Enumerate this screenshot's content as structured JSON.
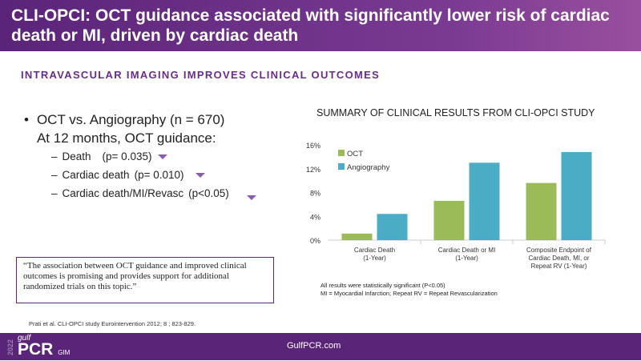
{
  "header": {
    "title": "CLI-OPCI: OCT guidance associated with significantly lower risk of cardiac death or MI, driven by cardiac death"
  },
  "subtitle": "INTRAVASCULAR IMAGING IMPROVES CLINICAL OUTCOMES",
  "bullets": {
    "main_line1": "OCT vs. Angiography (n = 670)",
    "main_line2": "At 12 months, OCT guidance:",
    "items": [
      {
        "label": "Death",
        "p": "(p= 0.035)",
        "icon": "arrow-down-icon"
      },
      {
        "label": "Cardiac death",
        "p": "(p= 0.010)",
        "icon": "arrow-down-icon"
      },
      {
        "label": "Cardiac death/MI/Revasc",
        "p": "(p<0.05)",
        "icon": "arrow-down-icon"
      }
    ]
  },
  "quote": "“The association between OCT guidance and improved clinical outcomes is promising and provides support for additional randomized trials on this topic.”",
  "reference": "Prati et al. CLI-OPCI study Eurointervention 2012; 8 ; 823-829.",
  "footer": {
    "year": "2022",
    "logo_small": "gulf",
    "logo_main": "PCR",
    "logo_suffix": "GIM",
    "site": "GulfPCR.com"
  },
  "chart_data": {
    "type": "bar",
    "title": "SUMMARY OF CLINICAL RESULTS FROM CLI-OPCI STUDY",
    "categories": [
      [
        "Cardiac Death",
        "(1-Year)"
      ],
      [
        "Cardiac Death or MI",
        "(1-Year)"
      ],
      [
        "Composite Endpoint of",
        "Cardiac Death, MI, or",
        "Repeat RV (1-Year)"
      ]
    ],
    "series": [
      {
        "name": "OCT",
        "color": "#9bbb59",
        "values": [
          1.1,
          6.6,
          9.6
        ]
      },
      {
        "name": "Angiography",
        "color": "#4bacc6",
        "values": [
          4.4,
          13.0,
          14.8
        ]
      }
    ],
    "yticks": [
      "0%",
      "4%",
      "8%",
      "12%",
      "16%"
    ],
    "ylim": [
      0,
      16
    ],
    "grid": false,
    "legend": "top-left",
    "notes": [
      "All results were statistically significant (P<0.05)",
      "MI = Myocardial Infarction; Repeat RV = Repeat Revascularization"
    ]
  }
}
